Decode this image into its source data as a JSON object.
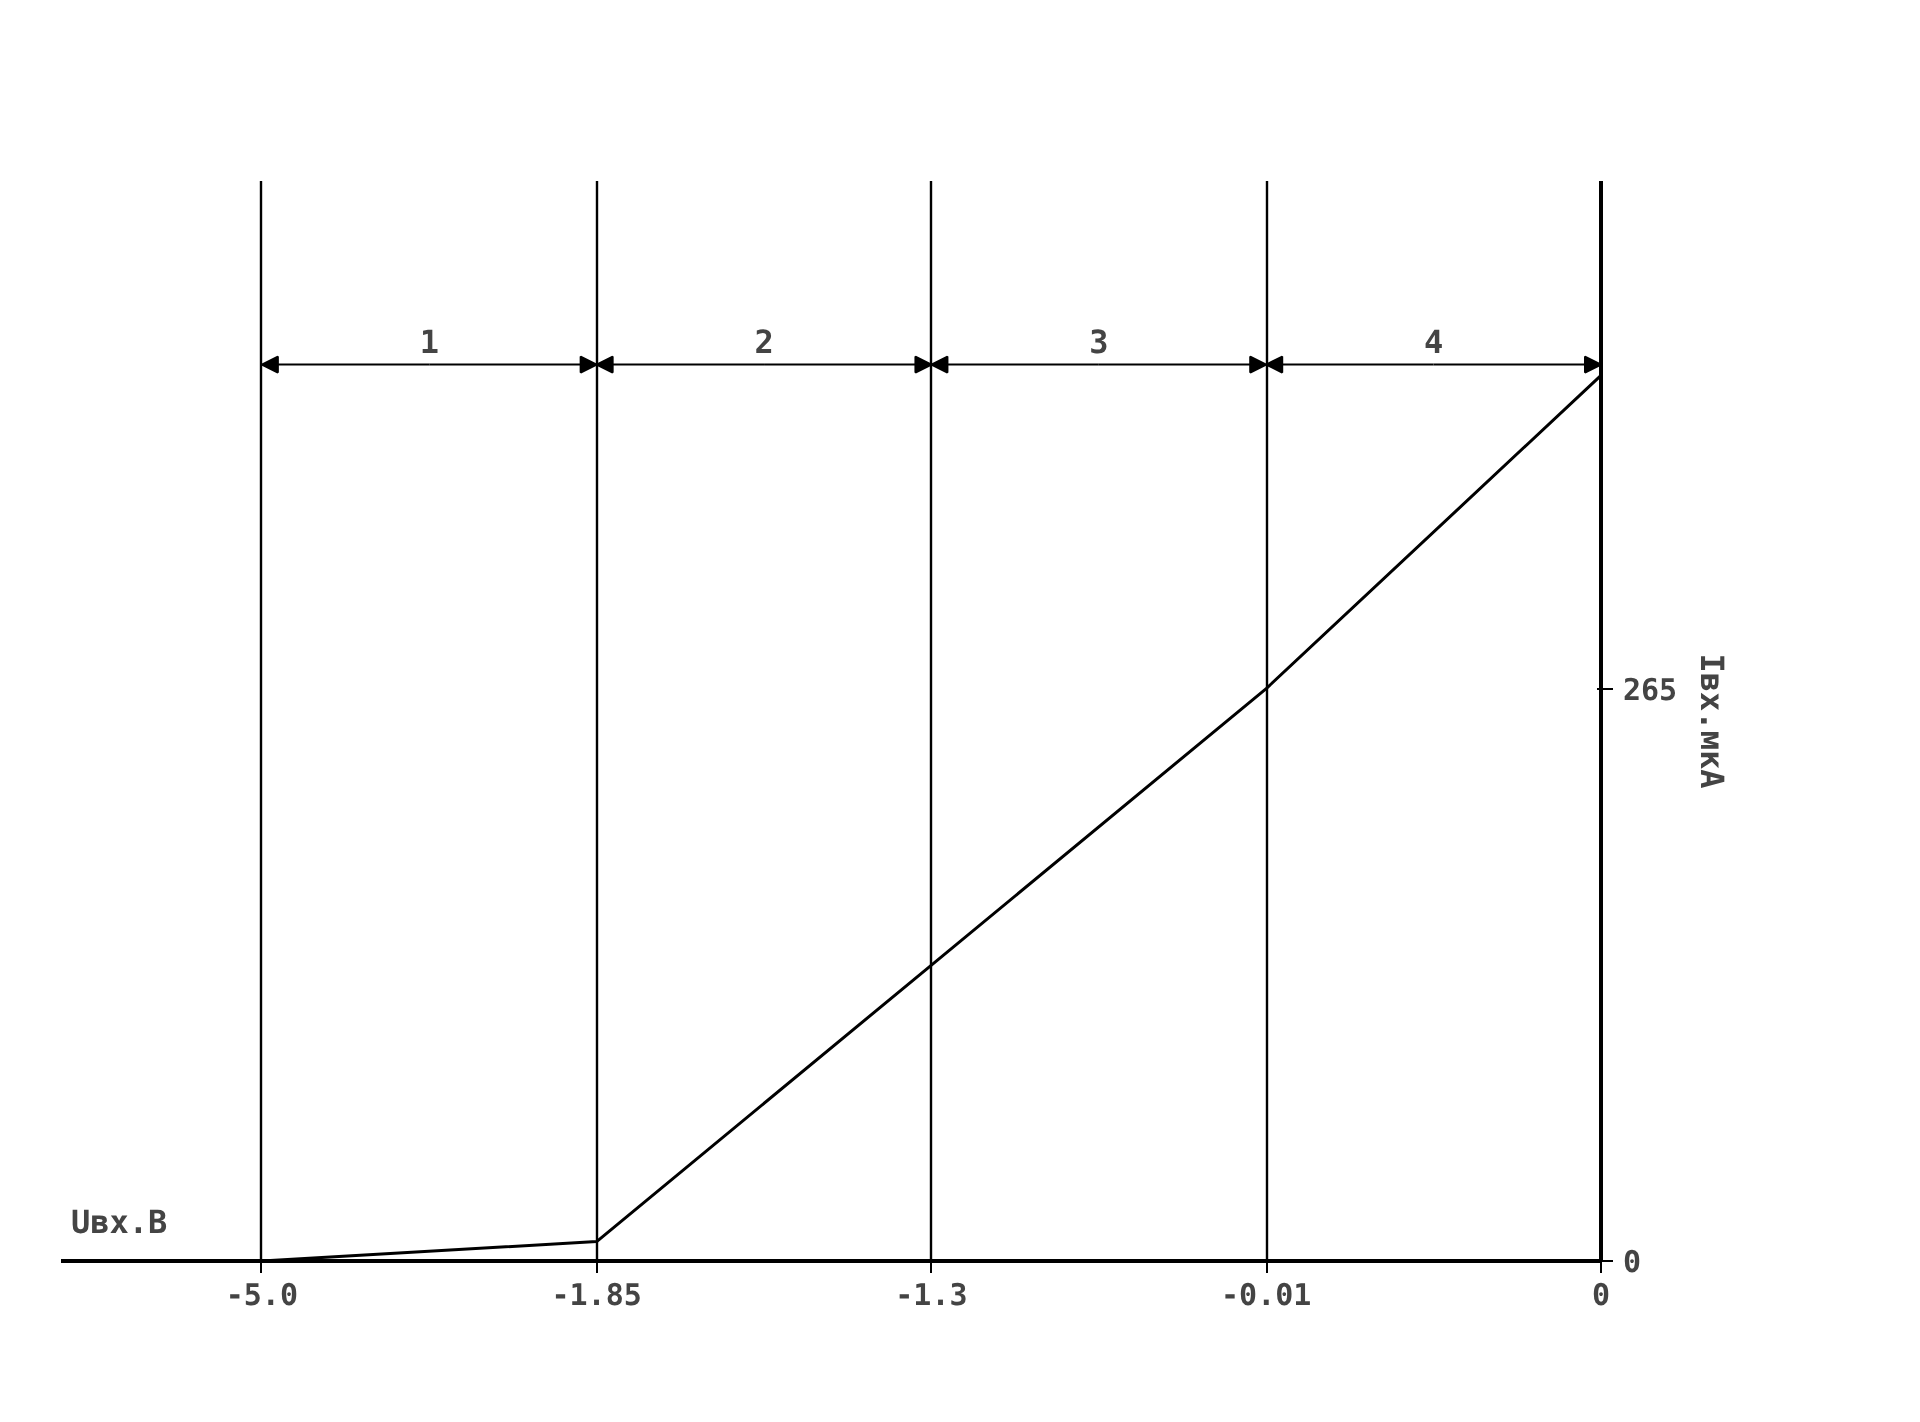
{
  "chart_data": {
    "type": "line",
    "xlabel": "Uвх.В",
    "ylabel": "Iвх.мкА",
    "categories": [
      "-5.0",
      "-1.85",
      "-1.3",
      "-0.01",
      "0"
    ],
    "series": [
      {
        "color": "#000000",
        "values": [
          0,
          9,
          137,
          265,
          410
        ]
      }
    ],
    "ylim": [
      0,
      500
    ],
    "yticks": [
      0,
      265
    ],
    "annotations": [
      "1",
      "2",
      "3",
      "4"
    ],
    "grid": "x",
    "marker": "none",
    "line_style": "solid"
  }
}
